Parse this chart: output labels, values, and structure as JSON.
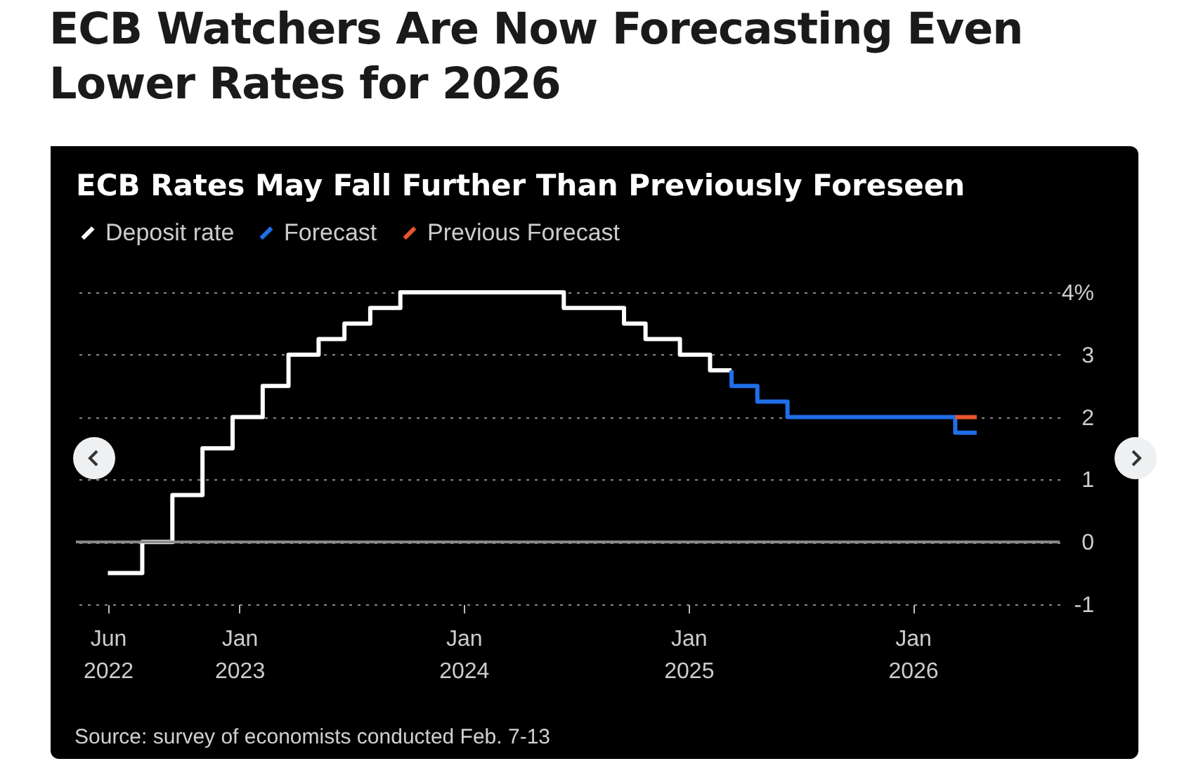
{
  "chart_data": {
    "type": "step",
    "title": "ECB Watchers Are Now Forecasting Even Lower Rates for 2026",
    "subtitle": "ECB Rates May Fall Further Than Previously Foreseen",
    "annotations": [
      "Source: survey of economists conducted Feb. 7-13"
    ],
    "series": [
      {
        "name": "Deposit rate",
        "color": "#ffffff",
        "x": [
          "2022-06-01",
          "2022-07-27",
          "2022-09-14",
          "2022-11-02",
          "2022-12-21",
          "2023-02-08",
          "2023-03-22",
          "2023-05-10",
          "2023-06-21",
          "2023-08-02",
          "2023-09-20",
          "2024-06-12",
          "2024-09-18",
          "2024-10-23",
          "2024-12-18",
          "2025-02-05",
          "2025-03-12"
        ],
        "values": [
          -0.5,
          0,
          0.75,
          1.5,
          2,
          2.5,
          3,
          3.25,
          3.5,
          3.75,
          4,
          3.75,
          3.5,
          3.25,
          3,
          2.75,
          2.75
        ]
      },
      {
        "name": "Forecast",
        "color": "#1f6fe8",
        "x": [
          "2025-03-12",
          "2025-03-12",
          "2025-04-23",
          "2025-06-11",
          "2026-03-11",
          "2026-04-15"
        ],
        "values": [
          2.75,
          2.5,
          2.25,
          2,
          1.75,
          1.75
        ]
      },
      {
        "name": "Previous Forecast",
        "color": "#e8552d",
        "x": [
          "2026-03-11",
          "2026-04-15"
        ],
        "values": [
          2,
          2
        ]
      }
    ],
    "xlim": [
      "2022-04-10",
      "2026-08-28"
    ],
    "xticks": [
      {
        "value": "2022-06-01",
        "label": "Jun 2022"
      },
      {
        "value": "2023-01-01",
        "label": "Jan 2023"
      },
      {
        "value": "2024-01-01",
        "label": "Jan 2024"
      },
      {
        "value": "2025-01-01",
        "label": "Jan 2025"
      },
      {
        "value": "2026-01-01",
        "label": "Jan 2026"
      }
    ],
    "ylim": [
      -1,
      4
    ],
    "yticks": [
      -1,
      0,
      1,
      2,
      3,
      {
        "value": 4,
        "label": "4%"
      }
    ],
    "ref_lines": [
      {
        "axis": "y",
        "value": 0,
        "color": "#8a8a8a"
      }
    ],
    "grid": "y",
    "legend": "top left",
    "line_style": "solid"
  }
}
